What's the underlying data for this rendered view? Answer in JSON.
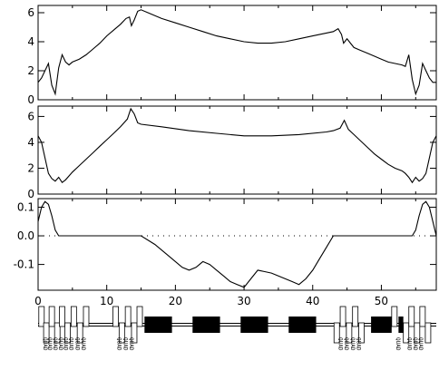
{
  "chart_data": [
    {
      "type": "line",
      "xlim": [
        0,
        58
      ],
      "ylim": [
        0,
        6.5
      ],
      "yticks": [
        0,
        2,
        4,
        6
      ],
      "yticklabels": [
        "0",
        "2",
        "4",
        "6"
      ],
      "series": [
        {
          "x": [
            0,
            0.5,
            1,
            1.5,
            2,
            2.5,
            3,
            3.5,
            4,
            4.5,
            5,
            6,
            7,
            8,
            9,
            10,
            11,
            12,
            12.8,
            13.3,
            13.6,
            14,
            14.5,
            15,
            16,
            18,
            20,
            22,
            24,
            26,
            28,
            30,
            32,
            34,
            36,
            38,
            40,
            42,
            43,
            43.7,
            44.2,
            44.5,
            45,
            45.5,
            46,
            47,
            48,
            49,
            50,
            51,
            52,
            53,
            53.5,
            54,
            54.5,
            55,
            55.5,
            56,
            56.5,
            57,
            57.5,
            58
          ],
          "values": [
            1.2,
            1.5,
            2.0,
            2.5,
            1.0,
            0.4,
            2.2,
            3.1,
            2.6,
            2.4,
            2.6,
            2.8,
            3.1,
            3.5,
            3.9,
            4.4,
            4.8,
            5.2,
            5.6,
            5.7,
            5.1,
            5.5,
            6.1,
            6.2,
            6.0,
            5.6,
            5.3,
            5.0,
            4.7,
            4.4,
            4.2,
            4.0,
            3.9,
            3.9,
            4.0,
            4.2,
            4.4,
            4.6,
            4.7,
            4.9,
            4.5,
            3.9,
            4.2,
            3.9,
            3.6,
            3.4,
            3.2,
            3.0,
            2.8,
            2.6,
            2.5,
            2.4,
            2.3,
            3.1,
            1.4,
            0.4,
            1.0,
            2.5,
            2.0,
            1.5,
            1.2,
            1.2
          ]
        }
      ]
    },
    {
      "type": "line",
      "xlim": [
        0,
        58
      ],
      "ylim": [
        0,
        6.8
      ],
      "yticks": [
        0,
        2,
        4,
        6
      ],
      "yticklabels": [
        "0",
        "2",
        "4",
        "6"
      ],
      "series": [
        {
          "x": [
            0,
            0.5,
            1,
            1.5,
            2,
            2.5,
            3,
            3.5,
            4,
            5,
            6,
            7,
            8,
            9,
            10,
            11,
            12,
            13,
            13.5,
            14,
            14.5,
            15,
            18,
            22,
            26,
            30,
            34,
            38,
            42,
            43,
            44,
            44.6,
            45.2,
            46,
            47,
            48,
            49,
            50,
            51,
            52,
            53,
            53.5,
            54,
            54.5,
            55,
            55.5,
            56,
            56.5,
            57,
            57.5,
            58
          ],
          "values": [
            4.5,
            4.0,
            2.8,
            1.6,
            1.2,
            1.0,
            1.3,
            0.9,
            1.1,
            1.7,
            2.2,
            2.7,
            3.2,
            3.7,
            4.2,
            4.7,
            5.2,
            5.8,
            6.6,
            6.2,
            5.5,
            5.4,
            5.2,
            4.9,
            4.7,
            4.5,
            4.5,
            4.6,
            4.8,
            4.9,
            5.1,
            5.7,
            5.0,
            4.6,
            4.1,
            3.6,
            3.1,
            2.7,
            2.3,
            2.0,
            1.8,
            1.6,
            1.3,
            0.9,
            1.3,
            1.0,
            1.2,
            1.6,
            2.8,
            4.0,
            4.5
          ]
        }
      ]
    },
    {
      "type": "line",
      "xlim": [
        0,
        58
      ],
      "ylim": [
        -0.19,
        0.13
      ],
      "xticks": [
        0,
        10,
        20,
        30,
        40,
        50
      ],
      "xticklabels": [
        "0",
        "10",
        "20",
        "30",
        "40",
        "50"
      ],
      "yticks": [
        -0.1,
        0.0,
        0.1
      ],
      "yticklabels": [
        "-0.1",
        "0.0",
        "0.1"
      ],
      "zero_line": "dotted",
      "series": [
        {
          "x": [
            0,
            0.5,
            1,
            1.5,
            2,
            2.5,
            3,
            14,
            15,
            17,
            19,
            21,
            22,
            23,
            24,
            25,
            26,
            27,
            28,
            29,
            30,
            31,
            32,
            33,
            34,
            35,
            36,
            37,
            38,
            39,
            40,
            41,
            42,
            43,
            54.5,
            55,
            55.5,
            56,
            56.5,
            57,
            57.5,
            58
          ],
          "values": [
            0.05,
            0.1,
            0.12,
            0.11,
            0.07,
            0.02,
            0.0,
            0.0,
            0.0,
            -0.03,
            -0.07,
            -0.11,
            -0.12,
            -0.11,
            -0.09,
            -0.1,
            -0.12,
            -0.14,
            -0.16,
            -0.17,
            -0.18,
            -0.15,
            -0.12,
            -0.125,
            -0.13,
            -0.14,
            -0.15,
            -0.16,
            -0.17,
            -0.15,
            -0.12,
            -0.08,
            -0.04,
            0.0,
            0.0,
            0.02,
            0.07,
            0.11,
            0.12,
            0.1,
            0.05,
            0.0
          ]
        }
      ]
    }
  ],
  "lattice": {
    "labels": [
      "QUAD",
      "QUAD",
      "QUAD",
      "QUAD",
      "QUAD",
      "QUAD",
      "QUAD",
      "QUAD",
      "QUAD",
      "QUAD",
      "QUAD",
      "QUAD",
      "QUAD",
      "QUAD",
      "QUAD",
      "QUAD",
      "QUAD",
      "QUAD",
      "QUAD"
    ],
    "dipoles": [
      {
        "start": 15.5,
        "end": 19.5
      },
      {
        "start": 22.5,
        "end": 26.5
      },
      {
        "start": 29.5,
        "end": 33.5
      },
      {
        "start": 36.5,
        "end": 40.5
      },
      {
        "start": 48.5,
        "end": 51.5
      },
      {
        "start": 52.5,
        "end": 53.2
      }
    ],
    "quads": [
      {
        "s": 0.5,
        "up": true
      },
      {
        "s": 1.2,
        "up": false
      },
      {
        "s": 2.0,
        "up": true
      },
      {
        "s": 2.8,
        "up": false
      },
      {
        "s": 3.5,
        "up": true
      },
      {
        "s": 4.3,
        "up": false
      },
      {
        "s": 5.2,
        "up": true
      },
      {
        "s": 6.1,
        "up": false
      },
      {
        "s": 7.0,
        "up": true
      },
      {
        "s": 11.3,
        "up": true
      },
      {
        "s": 12.2,
        "up": false
      },
      {
        "s": 13.1,
        "up": true
      },
      {
        "s": 14.0,
        "up": false
      },
      {
        "s": 14.8,
        "up": true
      },
      {
        "s": 43.5,
        "up": false
      },
      {
        "s": 44.4,
        "up": true
      },
      {
        "s": 45.3,
        "up": false
      },
      {
        "s": 46.2,
        "up": true
      },
      {
        "s": 47.1,
        "up": false
      },
      {
        "s": 51.9,
        "up": true
      },
      {
        "s": 53.6,
        "up": false
      },
      {
        "s": 54.4,
        "up": true
      },
      {
        "s": 55.2,
        "up": false
      },
      {
        "s": 56.0,
        "up": true
      },
      {
        "s": 56.8,
        "up": false
      }
    ],
    "label_positions": [
      0.5,
      1.2,
      2.0,
      2.8,
      3.5,
      4.3,
      5.2,
      6.1,
      11.3,
      12.2,
      13.1,
      43.5,
      44.4,
      45.3,
      46.2,
      51.9,
      53.6,
      54.4,
      55.2
    ]
  }
}
